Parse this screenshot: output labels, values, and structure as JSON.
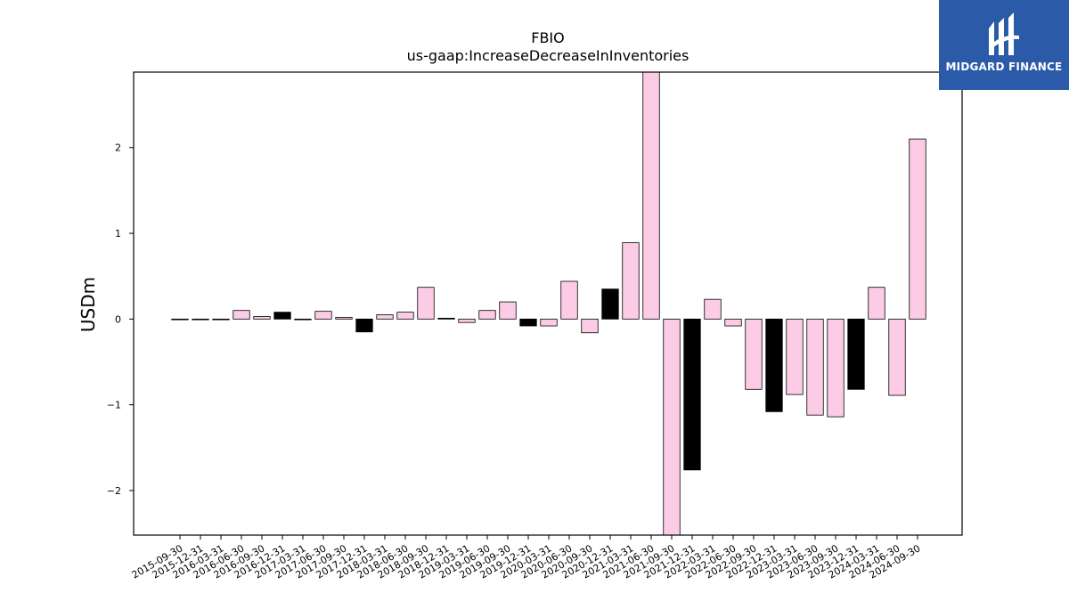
{
  "brand": {
    "name": "MIDGARD FINANCE",
    "bg_color": "#2a5aa8"
  },
  "chart_data": {
    "type": "bar",
    "title": "FBIO",
    "subtitle": "us-gaap:IncreaseDecreaseInInventories",
    "xlabel": "",
    "ylabel": "USDm",
    "ylim": [
      -2.52,
      2.88
    ],
    "yticks": [
      -2,
      -1,
      0,
      1,
      2
    ],
    "ytick_labels": [
      "−2",
      "−1",
      "0",
      "1",
      "2"
    ],
    "grid": false,
    "categories": [
      "2015-09-30",
      "2015-12-31",
      "2016-03-31",
      "2016-06-30",
      "2016-09-30",
      "2016-12-31",
      "2017-03-31",
      "2017-06-30",
      "2017-09-30",
      "2017-12-31",
      "2018-03-31",
      "2018-06-30",
      "2018-09-30",
      "2018-12-31",
      "2019-03-31",
      "2019-06-30",
      "2019-09-30",
      "2019-12-31",
      "2020-03-31",
      "2020-06-30",
      "2020-09-30",
      "2020-12-31",
      "2021-03-31",
      "2021-06-30",
      "2021-09-30",
      "2021-12-31",
      "2022-03-31",
      "2022-06-30",
      "2022-09-30",
      "2022-12-31",
      "2023-03-31",
      "2023-06-30",
      "2023-09-30",
      "2023-12-31",
      "2024-03-31",
      "2024-06-30",
      "2024-09-30"
    ],
    "values": [
      0.0,
      0.0,
      0.0,
      0.1,
      0.03,
      0.08,
      0.0,
      0.09,
      0.02,
      -0.15,
      0.05,
      0.08,
      0.37,
      0.01,
      -0.04,
      0.1,
      0.2,
      -0.08,
      -0.08,
      0.44,
      -0.16,
      0.35,
      0.89,
      2.9,
      -2.52,
      -1.76,
      0.23,
      -0.08,
      -0.82,
      -1.08,
      -0.88,
      -1.12,
      -1.14,
      -0.82,
      0.37,
      -0.89,
      2.1
    ],
    "bar_colors": [
      "#fccce6",
      "#fccce6",
      "#fccce6",
      "#fccce6",
      "#fccce6",
      "#000000",
      "#fccce6",
      "#fccce6",
      "#fccce6",
      "#000000",
      "#fccce6",
      "#fccce6",
      "#fccce6",
      "#000000",
      "#fccce6",
      "#fccce6",
      "#fccce6",
      "#000000",
      "#fccce6",
      "#fccce6",
      "#fccce6",
      "#000000",
      "#fccce6",
      "#fccce6",
      "#fccce6",
      "#000000",
      "#fccce6",
      "#fccce6",
      "#fccce6",
      "#000000",
      "#fccce6",
      "#fccce6",
      "#fccce6",
      "#000000",
      "#fccce6",
      "#fccce6",
      "#fccce6"
    ]
  }
}
